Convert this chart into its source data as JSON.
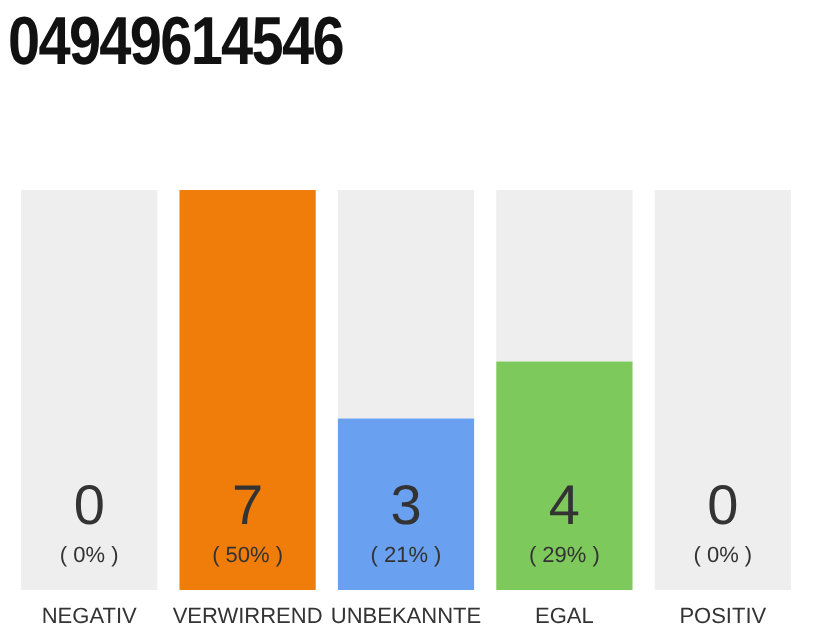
{
  "chart_data": {
    "type": "bar",
    "title": "04949614546",
    "categories": [
      "NEGATIV",
      "VERWIRREND",
      "UNBEKANNTE",
      "EGAL",
      "POSITIV"
    ],
    "series": [
      {
        "colors": [
          "#eeeeee",
          "#f07c0a",
          "#6aa0f0",
          "#7dc95c",
          "#eeeeee"
        ],
        "values": [
          0,
          7,
          3,
          4,
          0
        ],
        "value_labels": [
          null,
          "7",
          "3",
          "4",
          null
        ]
      },
      {
        "color": "#eeeeee",
        "values": [
          7,
          0,
          4,
          3,
          7
        ]
      }
    ],
    "stacked": true,
    "ylim": [
      0,
      7
    ],
    "tick_labels": "x",
    "grid": false,
    "legend": false,
    "annotations": [
      {
        "text": "0",
        "x": "NEGATIV",
        "y": 0
      },
      {
        "text": "0",
        "x": "POSITIV",
        "y": 0
      },
      "( 0% )",
      "( 50% )",
      "( 21% )",
      "( 29% )",
      "( 0% )"
    ]
  }
}
